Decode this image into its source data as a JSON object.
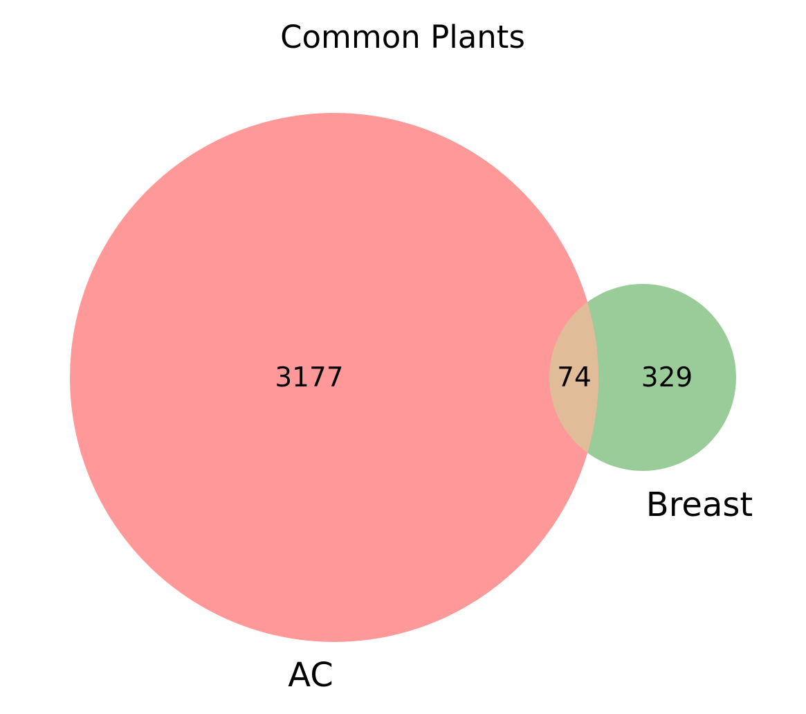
{
  "chart_data": {
    "type": "venn",
    "title": "Common Plants",
    "sets": [
      {
        "name": "AC",
        "color": "#ff9999"
      },
      {
        "name": "Breast",
        "color": "#99cc99"
      }
    ],
    "regions": {
      "ac_only": 3177,
      "both": 74,
      "breast_only": 329
    },
    "intersection_color": "#e0bd98"
  }
}
